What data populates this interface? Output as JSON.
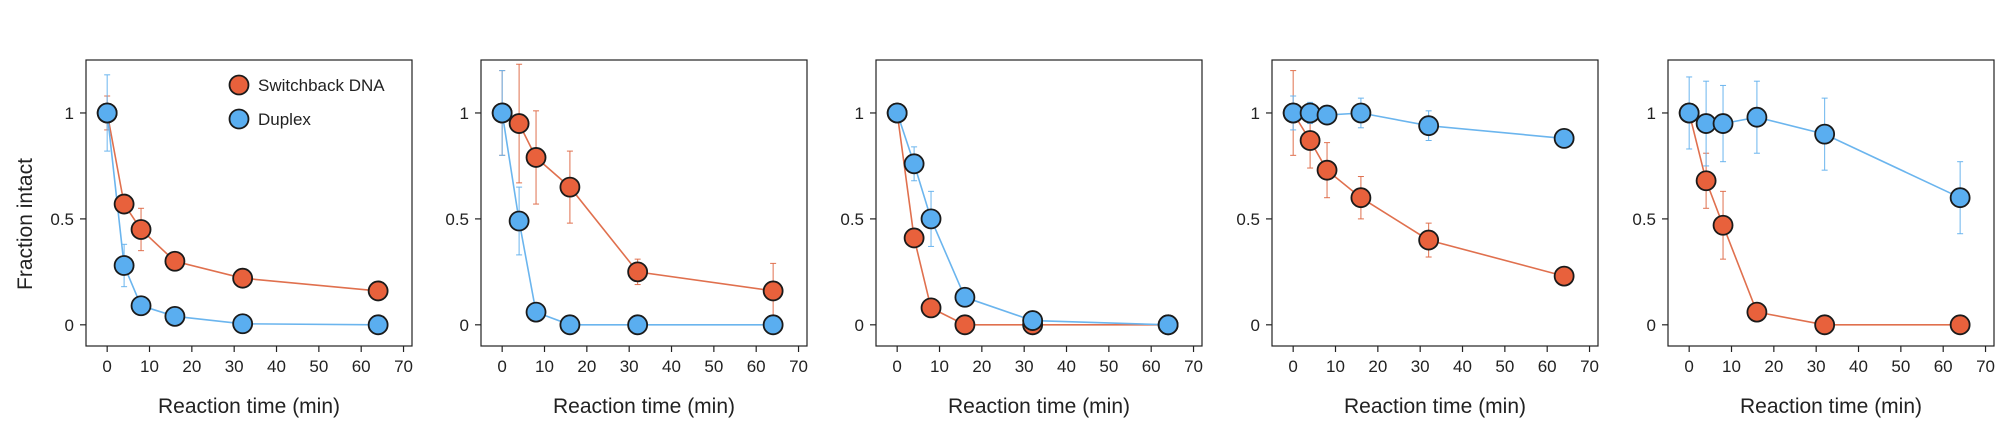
{
  "colors": {
    "switchback": "#e8613c",
    "duplex": "#5aaef0",
    "switchback_line": "#e0704e",
    "duplex_line": "#6bb5ee",
    "marker_edge": "#1a1a1a"
  },
  "shared": {
    "xlabel": "Reaction time (min)",
    "ylabel": "Fraction intact",
    "legend": {
      "placement": "top-right",
      "entries": [
        "Switchback DNA",
        "Duplex"
      ]
    }
  },
  "chart_data": [
    {
      "type": "line",
      "xlabel": "Reaction time (min)",
      "ylabel": "Fraction intact",
      "x": [
        0,
        4,
        8,
        16,
        32,
        64
      ],
      "xlim": [
        -5,
        72
      ],
      "ylim": [
        -0.1,
        1.25
      ],
      "xticks": [
        0,
        10,
        20,
        30,
        40,
        50,
        60,
        70
      ],
      "yticks": [
        0,
        0.5,
        1
      ],
      "ytick_labels": [
        "0",
        "0.5",
        "1"
      ],
      "legend": "top-right",
      "series": [
        {
          "name": "Switchback DNA",
          "values": [
            1.0,
            0.57,
            0.45,
            0.3,
            0.22,
            0.16
          ],
          "errors": [
            0.08,
            0.04,
            0.1,
            0.02,
            0.03,
            0.02
          ]
        },
        {
          "name": "Duplex",
          "values": [
            1.0,
            0.28,
            0.09,
            0.04,
            0.005,
            0.0
          ],
          "errors": [
            0.18,
            0.1,
            0.02,
            0.02,
            0.01,
            0.01
          ]
        }
      ]
    },
    {
      "type": "line",
      "xlabel": "Reaction time (min)",
      "x": [
        0,
        4,
        8,
        16,
        32,
        64
      ],
      "xlim": [
        -5,
        72
      ],
      "ylim": [
        -0.1,
        1.25
      ],
      "xticks": [
        0,
        10,
        20,
        30,
        40,
        50,
        60,
        70
      ],
      "yticks": [
        0,
        0.5,
        1
      ],
      "ytick_labels": [
        "0",
        "0.5",
        "1"
      ],
      "series": [
        {
          "name": "Switchback DNA",
          "values": [
            1.0,
            0.95,
            0.79,
            0.65,
            0.25,
            0.16
          ],
          "errors": [
            0.2,
            0.28,
            0.22,
            0.17,
            0.06,
            0.13
          ]
        },
        {
          "name": "Duplex",
          "values": [
            1.0,
            0.49,
            0.06,
            0.0,
            0.0,
            0.0
          ],
          "errors": [
            0.2,
            0.16,
            0.03,
            0.01,
            0.01,
            0.01
          ]
        }
      ]
    },
    {
      "type": "line",
      "xlabel": "Reaction time (min)",
      "x": [
        0,
        4,
        8,
        16,
        32,
        64
      ],
      "xlim": [
        -5,
        72
      ],
      "ylim": [
        -0.1,
        1.25
      ],
      "xticks": [
        0,
        10,
        20,
        30,
        40,
        50,
        60,
        70
      ],
      "yticks": [
        0,
        0.5,
        1
      ],
      "ytick_labels": [
        "0",
        "0.5",
        "1"
      ],
      "series": [
        {
          "name": "Switchback DNA",
          "values": [
            1.0,
            0.41,
            0.08,
            0.0,
            0.0,
            0.0
          ],
          "errors": [
            0.02,
            0.04,
            0.02,
            0.01,
            0.01,
            0.01
          ]
        },
        {
          "name": "Duplex",
          "values": [
            1.0,
            0.76,
            0.5,
            0.13,
            0.02,
            0.0
          ],
          "errors": [
            0.02,
            0.08,
            0.13,
            0.02,
            0.02,
            0.01
          ]
        }
      ]
    },
    {
      "type": "line",
      "xlabel": "Reaction time (min)",
      "x": [
        0,
        4,
        8,
        16,
        32,
        64
      ],
      "xlim": [
        -5,
        72
      ],
      "ylim": [
        -0.1,
        1.25
      ],
      "xticks": [
        0,
        10,
        20,
        30,
        40,
        50,
        60,
        70
      ],
      "yticks": [
        0,
        0.5,
        1
      ],
      "ytick_labels": [
        "0",
        "0.5",
        "1"
      ],
      "series": [
        {
          "name": "Switchback DNA",
          "values": [
            1.0,
            0.87,
            0.73,
            0.6,
            0.4,
            0.23
          ],
          "errors": [
            0.2,
            0.13,
            0.13,
            0.1,
            0.08,
            0.04
          ]
        },
        {
          "name": "Duplex",
          "values": [
            1.0,
            1.0,
            0.99,
            1.0,
            0.94,
            0.88
          ],
          "errors": [
            0.08,
            0.05,
            0.03,
            0.07,
            0.07,
            0.04
          ]
        }
      ]
    },
    {
      "type": "line",
      "xlabel": "Reaction time (min)",
      "x": [
        0,
        4,
        8,
        16,
        32,
        64
      ],
      "xlim": [
        -5,
        72
      ],
      "ylim": [
        -0.1,
        1.25
      ],
      "xticks": [
        0,
        10,
        20,
        30,
        40,
        50,
        60,
        70
      ],
      "yticks": [
        0,
        0.5,
        1
      ],
      "ytick_labels": [
        "0",
        "0.5",
        "1"
      ],
      "series": [
        {
          "name": "Switchback DNA",
          "values": [
            1.0,
            0.68,
            0.47,
            0.06,
            0.0,
            0.0
          ],
          "errors": [
            0.03,
            0.13,
            0.16,
            0.03,
            0.01,
            0.01
          ]
        },
        {
          "name": "Duplex",
          "values": [
            1.0,
            0.95,
            0.95,
            0.98,
            0.9,
            0.6
          ],
          "errors": [
            0.17,
            0.2,
            0.18,
            0.17,
            0.17,
            0.17
          ]
        }
      ]
    }
  ]
}
